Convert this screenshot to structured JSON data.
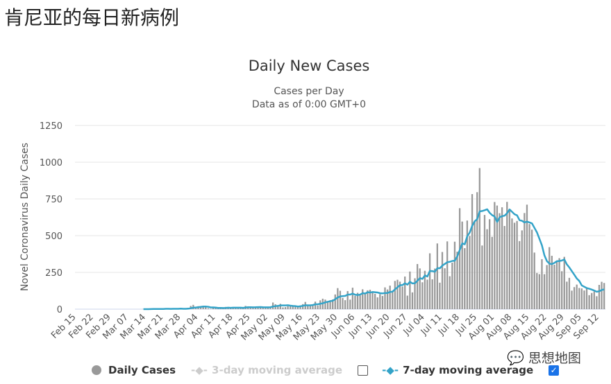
{
  "heading": "肯尼亚的每日新病例",
  "watermark": "思想地图",
  "colors": {
    "bars": "#999999",
    "line": "#33a3c8",
    "grid": "#e6e6e6"
  },
  "chart_data": {
    "type": "bar",
    "title": "Daily New Cases",
    "subtitle": "Cases per Day",
    "subtitle2": "Data as of 0:00 GMT+0",
    "ylabel": "Novel Coronavirus Daily Cases",
    "ylim": [
      0,
      1250
    ],
    "yticks": [
      0,
      250,
      500,
      750,
      1000,
      1250
    ],
    "grid": true,
    "legend_placement": "bottom",
    "x_start": "2020-02-15",
    "x_end": "2020-09-14",
    "xtick_labels": [
      "Feb 15",
      "Feb 22",
      "Feb 29",
      "Mar 07",
      "Mar 14",
      "Mar 21",
      "Mar 28",
      "Apr 04",
      "Apr 11",
      "Apr 18",
      "Apr 25",
      "May 02",
      "May 09",
      "May 16",
      "May 23",
      "May 30",
      "Jun 06",
      "Jun 13",
      "Jun 20",
      "Jun 27",
      "Jul 04",
      "Jul 11",
      "Jul 18",
      "Jul 25",
      "Aug 01",
      "Aug 08",
      "Aug 15",
      "Aug 22",
      "Aug 29",
      "Sep 05",
      "Sep 12"
    ],
    "series": [
      {
        "name": "Daily Cases",
        "type": "bar",
        "values": [
          0,
          0,
          0,
          0,
          0,
          0,
          0,
          0,
          0,
          0,
          0,
          0,
          0,
          0,
          0,
          0,
          0,
          0,
          0,
          0,
          0,
          0,
          0,
          0,
          0,
          0,
          0,
          1,
          0,
          0,
          2,
          4,
          0,
          4,
          0,
          1,
          7,
          0,
          1,
          3,
          3,
          2,
          7,
          0,
          0,
          9,
          22,
          29,
          12,
          20,
          16,
          16,
          12,
          6,
          2,
          12,
          7,
          6,
          11,
          8,
          15,
          9,
          6,
          13,
          8,
          11,
          7,
          9,
          22,
          19,
          12,
          7,
          12,
          16,
          11,
          13,
          14,
          12,
          14,
          45,
          33,
          25,
          36,
          12,
          14,
          20,
          24,
          21,
          17,
          16,
          25,
          34,
          49,
          21,
          21,
          29,
          51,
          25,
          60,
          71,
          65,
          50,
          60,
          66,
          100,
          143,
          125,
          76,
          61,
          123,
          65,
          146,
          90,
          111,
          93,
          135,
          103,
          128,
          132,
          112,
          104,
          80,
          102,
          90,
          148,
          134,
          160,
          118,
          192,
          200,
          187,
          154,
          222,
          92,
          256,
          114,
          210,
          307,
          277,
          183,
          261,
          201,
          380,
          203,
          276,
          447,
          180,
          389,
          278,
          461,
          224,
          316,
          459,
          391,
          687,
          596,
          415,
          603,
          498,
          783,
          602,
          796,
          960,
          433,
          641,
          544,
          612,
          492,
          729,
          705,
          653,
          693,
          566,
          730,
          672,
          617,
          588,
          600,
          463,
          536,
          654,
          711,
          579,
          541,
          385,
          246,
          238,
          340,
          238,
          300,
          422,
          363,
          302,
          321,
          347,
          258,
          356,
          187,
          213,
          126,
          150,
          167,
          144,
          141,
          127,
          148,
          95,
          110,
          120,
          88,
          165,
          186,
          178
        ]
      },
      {
        "name": "3-day moving average",
        "type": "line",
        "visible": false
      },
      {
        "name": "7-day moving average",
        "type": "line",
        "visible": true
      }
    ]
  }
}
